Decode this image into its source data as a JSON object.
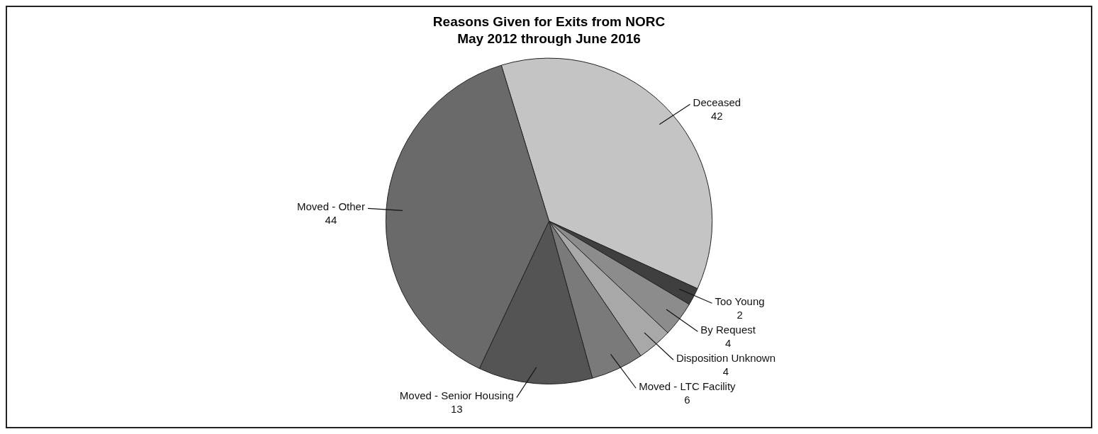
{
  "chart_data": {
    "type": "pie",
    "title": "Reasons Given for Exits from NORC",
    "subtitle": "May 2012 through June 2016",
    "categories": [
      "Deceased",
      "Too Young",
      "By Request",
      "Disposition Unknown",
      "Moved - LTC Facility",
      "Moved - Senior Housing",
      "Moved - Other"
    ],
    "values": [
      42,
      2,
      4,
      4,
      6,
      13,
      44
    ],
    "colors": [
      "#c4c4c4",
      "#3f3f3f",
      "#8c8c8c",
      "#a8a8a8",
      "#7a7a7a",
      "#545454",
      "#6a6a6a"
    ],
    "data_labels": true,
    "legend": false
  }
}
